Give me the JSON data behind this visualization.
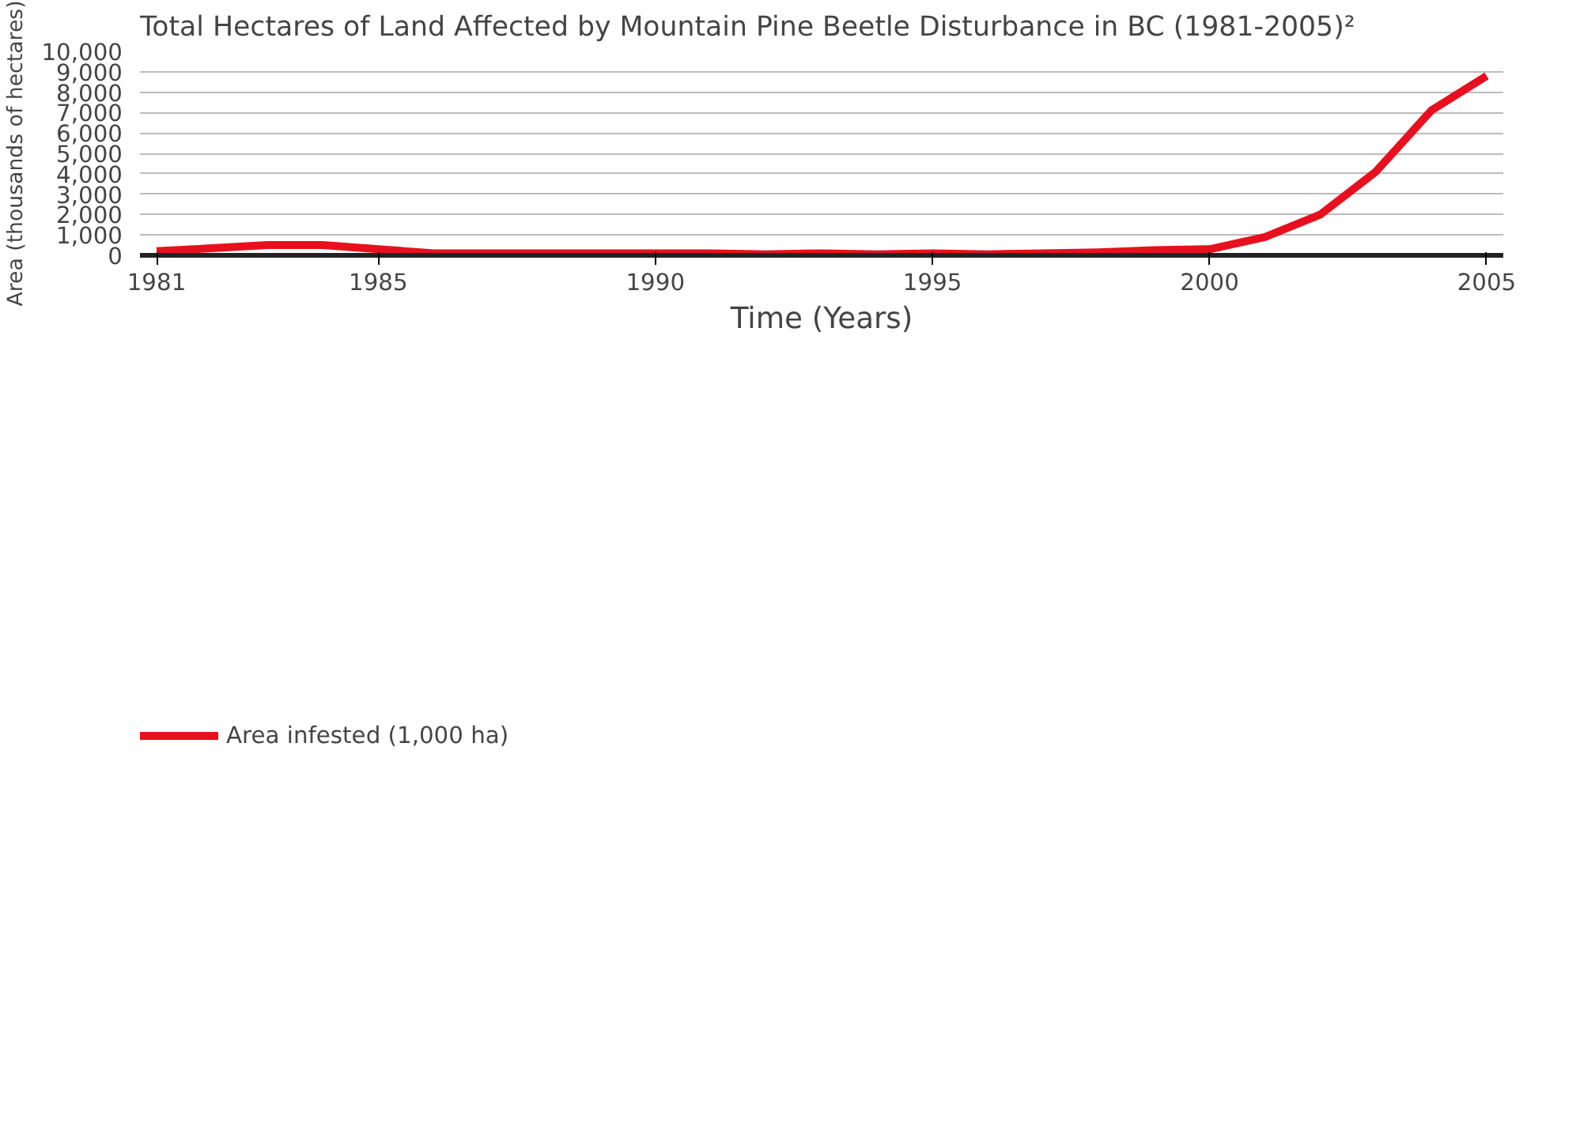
{
  "chart_data": {
    "type": "line",
    "title": "Total Hectares of Land Affected by Mountain Pine Beetle Disturbance in BC (1981-2005)²",
    "xlabel": "Time (Years)",
    "ylabel": "Area (thousands of hectares)",
    "x": [
      1981,
      1982,
      1983,
      1984,
      1985,
      1986,
      1987,
      1988,
      1989,
      1990,
      1991,
      1992,
      1993,
      1994,
      1995,
      1996,
      1997,
      1998,
      1999,
      2000,
      2001,
      2002,
      2003,
      2004,
      2005
    ],
    "series": [
      {
        "name": "Area infested (1,000 ha)",
        "color": "#e8101e",
        "values": [
          200,
          350,
          500,
          500,
          300,
          100,
          100,
          100,
          100,
          100,
          100,
          50,
          100,
          50,
          100,
          50,
          100,
          150,
          250,
          300,
          900,
          2000,
          4100,
          7100,
          8800
        ]
      }
    ],
    "xlim": [
      1980.7,
      2005.3
    ],
    "xticks": [
      1981,
      1985,
      1990,
      1995,
      2000,
      2005
    ],
    "ylim": [
      0,
      10000
    ],
    "yticks": [
      {
        "value": 0,
        "label": "0"
      },
      {
        "value": 1000,
        "label": "1,000"
      },
      {
        "value": 2000,
        "label": "2,000"
      },
      {
        "value": 3000,
        "label": "3,000"
      },
      {
        "value": 4000,
        "label": "4,000"
      },
      {
        "value": 5000,
        "label": "5,000"
      },
      {
        "value": 6000,
        "label": "6,000"
      },
      {
        "value": 7000,
        "label": "7,000"
      },
      {
        "value": 8000,
        "label": "8,000"
      },
      {
        "value": 9000,
        "label": "9,000"
      },
      {
        "value": 10000,
        "label": "10,000"
      }
    ],
    "grid": "y",
    "legend": "bottom left",
    "marker": "none",
    "line_style": "solid"
  }
}
